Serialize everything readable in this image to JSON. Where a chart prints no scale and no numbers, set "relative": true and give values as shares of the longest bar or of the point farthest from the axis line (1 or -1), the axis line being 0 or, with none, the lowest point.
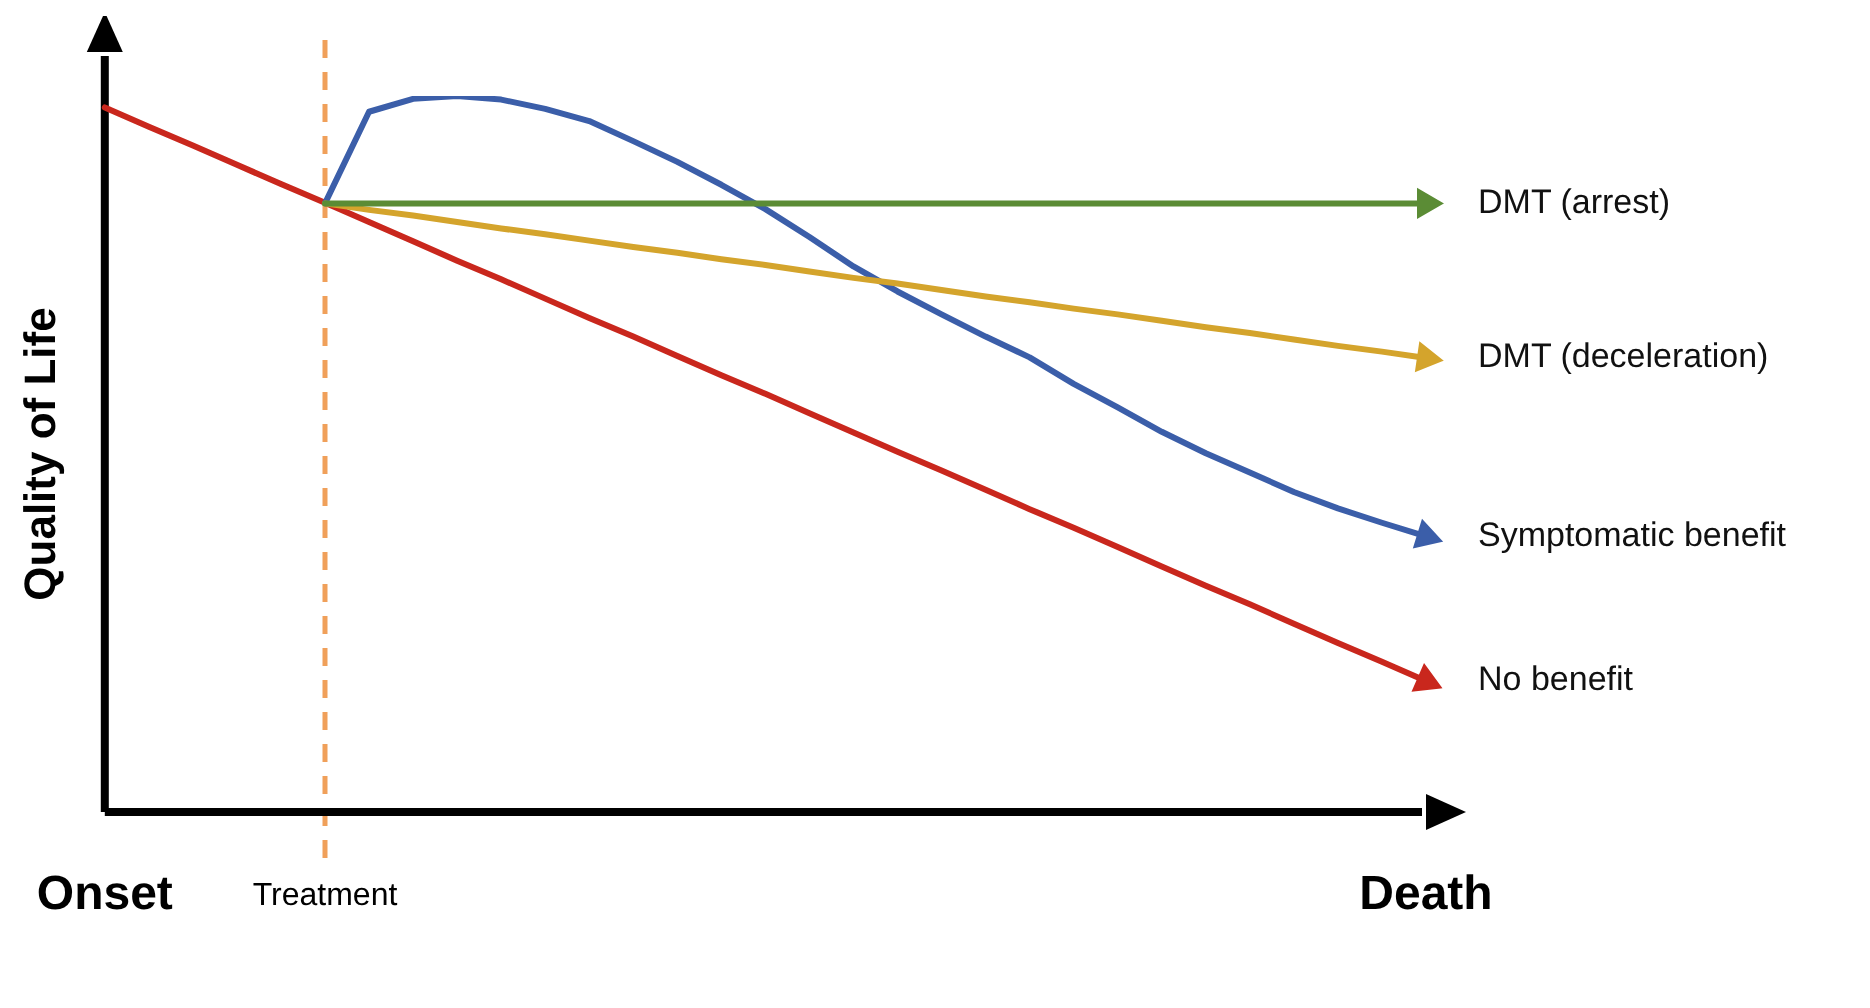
{
  "chart_data": {
    "type": "line",
    "relative": true,
    "ylabel": "Quality of Life",
    "legend": "right",
    "categories": [
      "Onset",
      null,
      null,
      null,
      null,
      "Treatment",
      null,
      null,
      null,
      null,
      null,
      null,
      null,
      null,
      null,
      null,
      null,
      null,
      null,
      null,
      null,
      null,
      null,
      null,
      null,
      null,
      null,
      null,
      null,
      null,
      "Death"
    ],
    "ref_lines": [
      {
        "axis": "x",
        "value": "Treatment",
        "color": "#f0a05a",
        "line_style": "dashed"
      }
    ],
    "series": [
      {
        "name": "DMT (arrest)",
        "color": "#5b8c35",
        "values": [
          null,
          null,
          null,
          null,
          null,
          0.85,
          0.85,
          0.85,
          0.85,
          0.85,
          0.85,
          0.85,
          0.85,
          0.85,
          0.85,
          0.85,
          0.85,
          0.85,
          0.85,
          0.85,
          0.85,
          0.85,
          0.85,
          0.85,
          0.85,
          0.85,
          0.85,
          0.85,
          0.85,
          0.85,
          0.85
        ]
      },
      {
        "name": "DMT (deceleration)",
        "color": "#d4a42c",
        "values": [
          null,
          null,
          null,
          null,
          null,
          0.85,
          0.841,
          0.833,
          0.824,
          0.815,
          0.807,
          0.798,
          0.789,
          0.781,
          0.772,
          0.764,
          0.755,
          0.746,
          0.738,
          0.729,
          0.72,
          0.712,
          0.703,
          0.695,
          0.686,
          0.677,
          0.669,
          0.66,
          0.651,
          0.643,
          0.634
        ]
      },
      {
        "name": "Symptomatic benefit",
        "color": "#3b5ea9",
        "values": [
          null,
          null,
          null,
          null,
          null,
          0.85,
          0.978,
          0.996,
          1,
          0.995,
          0.982,
          0.965,
          0.937,
          0.908,
          0.876,
          0.842,
          0.803,
          0.762,
          0.727,
          0.695,
          0.664,
          0.635,
          0.598,
          0.565,
          0.531,
          0.501,
          0.474,
          0.447,
          0.424,
          0.404,
          0.385
        ]
      },
      {
        "name": "No benefit",
        "color": "#c9271d",
        "values": [
          0.984,
          0.957,
          0.931,
          0.904,
          0.877,
          0.851,
          0.824,
          0.797,
          0.77,
          0.744,
          0.717,
          0.69,
          0.664,
          0.637,
          0.61,
          0.584,
          0.557,
          0.53,
          0.503,
          0.477,
          0.45,
          0.423,
          0.397,
          0.37,
          0.343,
          0.316,
          0.29,
          0.263,
          0.236,
          0.21,
          0.183
        ]
      }
    ]
  }
}
